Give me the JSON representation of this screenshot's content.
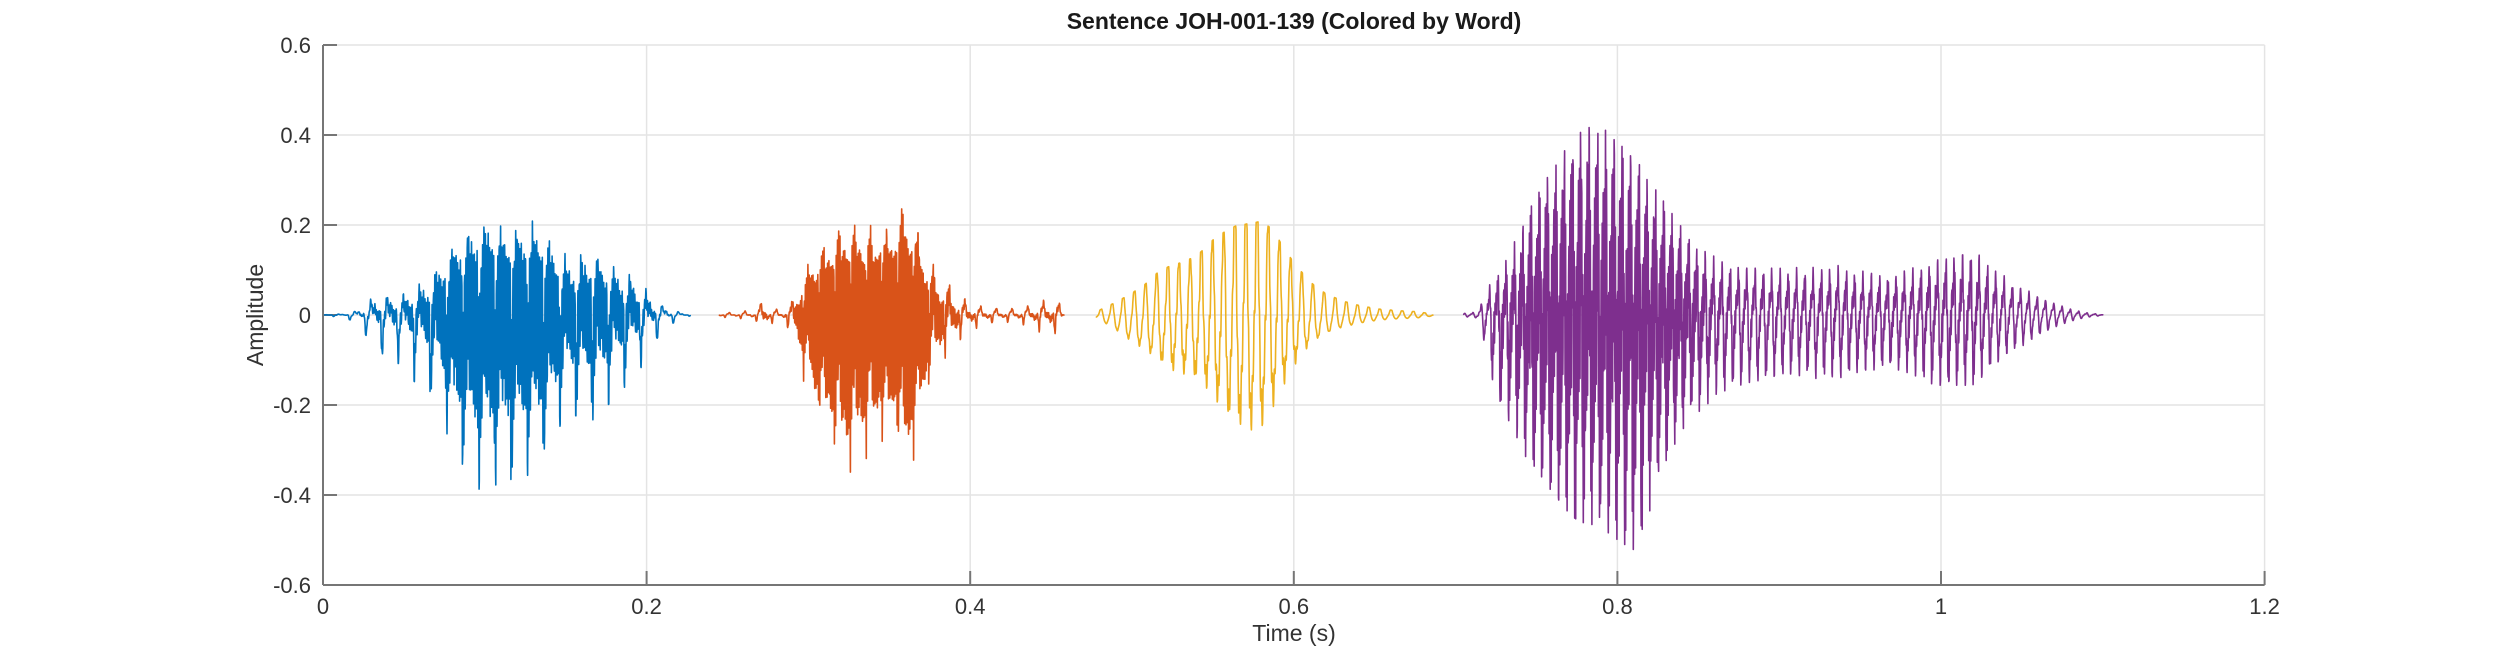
{
  "figure": {
    "title": "Sentence JOH-001-139 (Colored by Word)",
    "xlabel": "Time (s)",
    "ylabel": "Amplitude"
  },
  "chart_data": {
    "type": "line",
    "subtype": "audio-waveform",
    "title": "Sentence JOH-001-139 (Colored by Word)",
    "xlabel": "Time (s)",
    "ylabel": "Amplitude",
    "xlim": [
      0,
      1.2
    ],
    "ylim": [
      -0.6,
      0.6
    ],
    "xticks": [
      0,
      0.2,
      0.4,
      0.6,
      0.8,
      1,
      1.2
    ],
    "xtick_labels": [
      "0",
      "0.2",
      "0.4",
      "0.6",
      "0.8",
      "1",
      "1.2"
    ],
    "yticks": [
      -0.6,
      -0.4,
      -0.2,
      0,
      0.2,
      0.4,
      0.6
    ],
    "ytick_labels": [
      "-0.6",
      "-0.4",
      "-0.2",
      "0",
      "0.2",
      "0.4",
      "0.6"
    ],
    "grid": true,
    "legend": "none",
    "box": false,
    "axis_color": "#767676",
    "grid_color": "#e4e4e4",
    "label_color": "#333333",
    "title_color": "#1a1a1a",
    "description": "Speech waveform of one spoken sentence; each of the four words is drawn in a different color. Envelope keypoints are [time_s, positive_peak, negative_peak_depth].",
    "series": [
      {
        "name": "word-1",
        "color": "#0072BD",
        "t_start": 0.001,
        "t_end": 0.227,
        "f0_hz": 100,
        "envelope": [
          [
            0.001,
            0.002,
            0.002
          ],
          [
            0.012,
            0.004,
            0.004
          ],
          [
            0.02,
            0.015,
            0.015
          ],
          [
            0.027,
            0.05,
            0.045
          ],
          [
            0.033,
            0.07,
            0.08
          ],
          [
            0.04,
            0.075,
            0.1
          ],
          [
            0.048,
            0.08,
            0.11
          ],
          [
            0.056,
            0.1,
            0.15
          ],
          [
            0.064,
            0.12,
            0.18
          ],
          [
            0.072,
            0.16,
            0.22
          ],
          [
            0.08,
            0.19,
            0.3
          ],
          [
            0.088,
            0.23,
            0.36
          ],
          [
            0.096,
            0.27,
            0.43
          ],
          [
            0.104,
            0.3,
            0.44
          ],
          [
            0.112,
            0.26,
            0.42
          ],
          [
            0.12,
            0.25,
            0.38
          ],
          [
            0.128,
            0.24,
            0.34
          ],
          [
            0.136,
            0.2,
            0.29
          ],
          [
            0.144,
            0.17,
            0.25
          ],
          [
            0.152,
            0.155,
            0.21
          ],
          [
            0.16,
            0.17,
            0.22
          ],
          [
            0.168,
            0.18,
            0.235
          ],
          [
            0.176,
            0.17,
            0.21
          ],
          [
            0.184,
            0.155,
            0.185
          ],
          [
            0.192,
            0.14,
            0.15
          ],
          [
            0.2,
            0.1,
            0.1
          ],
          [
            0.208,
            0.05,
            0.05
          ],
          [
            0.216,
            0.025,
            0.02
          ],
          [
            0.222,
            0.01,
            0.008
          ],
          [
            0.227,
            0.002,
            0.002
          ]
        ]
      },
      {
        "name": "word-2",
        "color": "#D95319",
        "t_start": 0.245,
        "t_end": 0.458,
        "f0_hz": 103,
        "envelope": [
          [
            0.245,
            0.006,
            0.006
          ],
          [
            0.258,
            0.01,
            0.01
          ],
          [
            0.268,
            0.02,
            0.02
          ],
          [
            0.272,
            0.055,
            0.066
          ],
          [
            0.276,
            0.025,
            0.03
          ],
          [
            0.284,
            0.02,
            0.02
          ],
          [
            0.29,
            0.06,
            0.08
          ],
          [
            0.296,
            0.13,
            0.18
          ],
          [
            0.302,
            0.16,
            0.24
          ],
          [
            0.31,
            0.19,
            0.3
          ],
          [
            0.318,
            0.21,
            0.34
          ],
          [
            0.324,
            0.22,
            0.37
          ],
          [
            0.33,
            0.21,
            0.33
          ],
          [
            0.338,
            0.2,
            0.3
          ],
          [
            0.346,
            0.21,
            0.28
          ],
          [
            0.354,
            0.22,
            0.3
          ],
          [
            0.36,
            0.29,
            0.37
          ],
          [
            0.365,
            0.24,
            0.31
          ],
          [
            0.37,
            0.18,
            0.22
          ],
          [
            0.376,
            0.14,
            0.16
          ],
          [
            0.383,
            0.11,
            0.12
          ],
          [
            0.39,
            0.08,
            0.09
          ],
          [
            0.398,
            0.05,
            0.06
          ],
          [
            0.406,
            0.035,
            0.04
          ],
          [
            0.416,
            0.03,
            0.03
          ],
          [
            0.426,
            0.028,
            0.028
          ],
          [
            0.434,
            0.032,
            0.036
          ],
          [
            0.442,
            0.045,
            0.05
          ],
          [
            0.45,
            0.05,
            0.055
          ],
          [
            0.455,
            0.04,
            0.06
          ],
          [
            0.458,
            0.008,
            0.012
          ]
        ]
      },
      {
        "name": "word-3",
        "color": "#EDB120",
        "t_start": 0.478,
        "t_end": 0.686,
        "f0_hz": 145,
        "envelope": [
          [
            0.478,
            0.008,
            0.008
          ],
          [
            0.49,
            0.03,
            0.04
          ],
          [
            0.5,
            0.05,
            0.07
          ],
          [
            0.508,
            0.07,
            0.09
          ],
          [
            0.516,
            0.1,
            0.12
          ],
          [
            0.524,
            0.12,
            0.15
          ],
          [
            0.532,
            0.13,
            0.16
          ],
          [
            0.54,
            0.14,
            0.168
          ],
          [
            0.548,
            0.155,
            0.185
          ],
          [
            0.556,
            0.175,
            0.215
          ],
          [
            0.564,
            0.19,
            0.235
          ],
          [
            0.572,
            0.195,
            0.245
          ],
          [
            0.58,
            0.2,
            0.25
          ],
          [
            0.588,
            0.18,
            0.215
          ],
          [
            0.596,
            0.145,
            0.165
          ],
          [
            0.604,
            0.11,
            0.115
          ],
          [
            0.612,
            0.075,
            0.075
          ],
          [
            0.62,
            0.05,
            0.05
          ],
          [
            0.63,
            0.032,
            0.032
          ],
          [
            0.64,
            0.022,
            0.022
          ],
          [
            0.652,
            0.014,
            0.014
          ],
          [
            0.664,
            0.01,
            0.01
          ],
          [
            0.676,
            0.007,
            0.007
          ],
          [
            0.686,
            0.002,
            0.002
          ]
        ]
      },
      {
        "name": "word-4",
        "color": "#7E2F8E",
        "t_start": 0.705,
        "t_end": 1.1,
        "f0_hz": 195,
        "envelope": [
          [
            0.705,
            0.004,
            0.004
          ],
          [
            0.713,
            0.008,
            0.008
          ],
          [
            0.718,
            0.05,
            0.08
          ],
          [
            0.722,
            0.09,
            0.17
          ],
          [
            0.726,
            0.11,
            0.24
          ],
          [
            0.732,
            0.14,
            0.26
          ],
          [
            0.74,
            0.19,
            0.29
          ],
          [
            0.748,
            0.24,
            0.32
          ],
          [
            0.756,
            0.29,
            0.36
          ],
          [
            0.764,
            0.33,
            0.4
          ],
          [
            0.772,
            0.38,
            0.43
          ],
          [
            0.78,
            0.425,
            0.45
          ],
          [
            0.788,
            0.41,
            0.46
          ],
          [
            0.796,
            0.39,
            0.47
          ],
          [
            0.804,
            0.36,
            0.49
          ],
          [
            0.812,
            0.33,
            0.505
          ],
          [
            0.82,
            0.3,
            0.44
          ],
          [
            0.828,
            0.28,
            0.38
          ],
          [
            0.836,
            0.25,
            0.33
          ],
          [
            0.844,
            0.21,
            0.28
          ],
          [
            0.852,
            0.17,
            0.24
          ],
          [
            0.86,
            0.135,
            0.19
          ],
          [
            0.87,
            0.11,
            0.16
          ],
          [
            0.88,
            0.1,
            0.145
          ],
          [
            0.895,
            0.1,
            0.135
          ],
          [
            0.91,
            0.105,
            0.14
          ],
          [
            0.93,
            0.11,
            0.145
          ],
          [
            0.95,
            0.105,
            0.14
          ],
          [
            0.97,
            0.11,
            0.145
          ],
          [
            0.99,
            0.115,
            0.15
          ],
          [
            1.005,
            0.12,
            0.15
          ],
          [
            1.02,
            0.135,
            0.15
          ],
          [
            1.03,
            0.115,
            0.125
          ],
          [
            1.04,
            0.09,
            0.1
          ],
          [
            1.05,
            0.065,
            0.075
          ],
          [
            1.06,
            0.045,
            0.05
          ],
          [
            1.07,
            0.028,
            0.03
          ],
          [
            1.08,
            0.015,
            0.016
          ],
          [
            1.09,
            0.006,
            0.006
          ],
          [
            1.1,
            0.001,
            0.001
          ]
        ]
      }
    ]
  }
}
